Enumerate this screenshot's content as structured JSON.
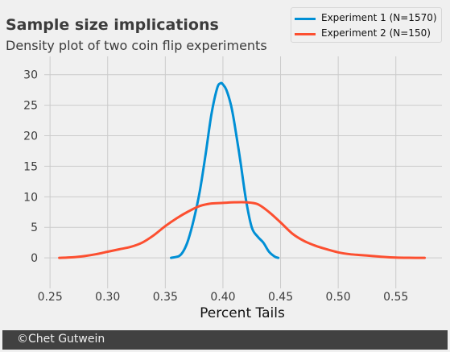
{
  "chart_data": {
    "type": "line",
    "title": "Sample size implications",
    "subtitle": "Density plot of two coin flip experiments",
    "xlabel": "Percent Tails",
    "ylabel": "",
    "xlim": [
      0.245,
      0.59
    ],
    "ylim": [
      -5,
      33
    ],
    "xticks": [
      0.25,
      0.3,
      0.35,
      0.4,
      0.45,
      0.5,
      0.55
    ],
    "xtick_labels": [
      "0.25",
      "0.30",
      "0.35",
      "0.40",
      "0.45",
      "0.50",
      "0.55"
    ],
    "yticks": [
      0,
      5,
      10,
      15,
      20,
      25,
      30
    ],
    "ytick_labels": [
      "0",
      "5",
      "10",
      "15",
      "20",
      "25",
      "30"
    ],
    "grid": true,
    "legend_position": "top-right",
    "series": [
      {
        "name": "Experiment 1 (N=1570)",
        "color": "#008fd5",
        "x": [
          0.355,
          0.362,
          0.366,
          0.37,
          0.375,
          0.38,
          0.385,
          0.39,
          0.395,
          0.398,
          0.4,
          0.403,
          0.407,
          0.41,
          0.415,
          0.42,
          0.425,
          0.43,
          0.435,
          0.44,
          0.445,
          0.448
        ],
        "y": [
          0.0,
          0.3,
          1.2,
          3.0,
          6.5,
          11.0,
          17.0,
          23.5,
          27.8,
          28.6,
          28.4,
          27.5,
          25.0,
          22.0,
          16.0,
          9.5,
          5.0,
          3.5,
          2.5,
          1.0,
          0.2,
          0.0
        ]
      },
      {
        "name": "Experiment 2 (N=150)",
        "color": "#fc4f30",
        "x": [
          0.258,
          0.27,
          0.28,
          0.29,
          0.3,
          0.31,
          0.32,
          0.33,
          0.34,
          0.35,
          0.36,
          0.37,
          0.38,
          0.39,
          0.4,
          0.41,
          0.42,
          0.43,
          0.44,
          0.45,
          0.46,
          0.47,
          0.48,
          0.49,
          0.5,
          0.51,
          0.52,
          0.53,
          0.54,
          0.55,
          0.56,
          0.575
        ],
        "y": [
          0.0,
          0.1,
          0.3,
          0.6,
          1.0,
          1.4,
          1.8,
          2.5,
          3.7,
          5.2,
          6.5,
          7.6,
          8.5,
          8.9,
          9.0,
          9.1,
          9.1,
          8.8,
          7.5,
          5.8,
          4.0,
          2.8,
          2.0,
          1.4,
          0.9,
          0.6,
          0.45,
          0.3,
          0.15,
          0.05,
          0.01,
          0.0
        ]
      }
    ]
  },
  "footer": {
    "text": "©Chet Gutwein"
  }
}
